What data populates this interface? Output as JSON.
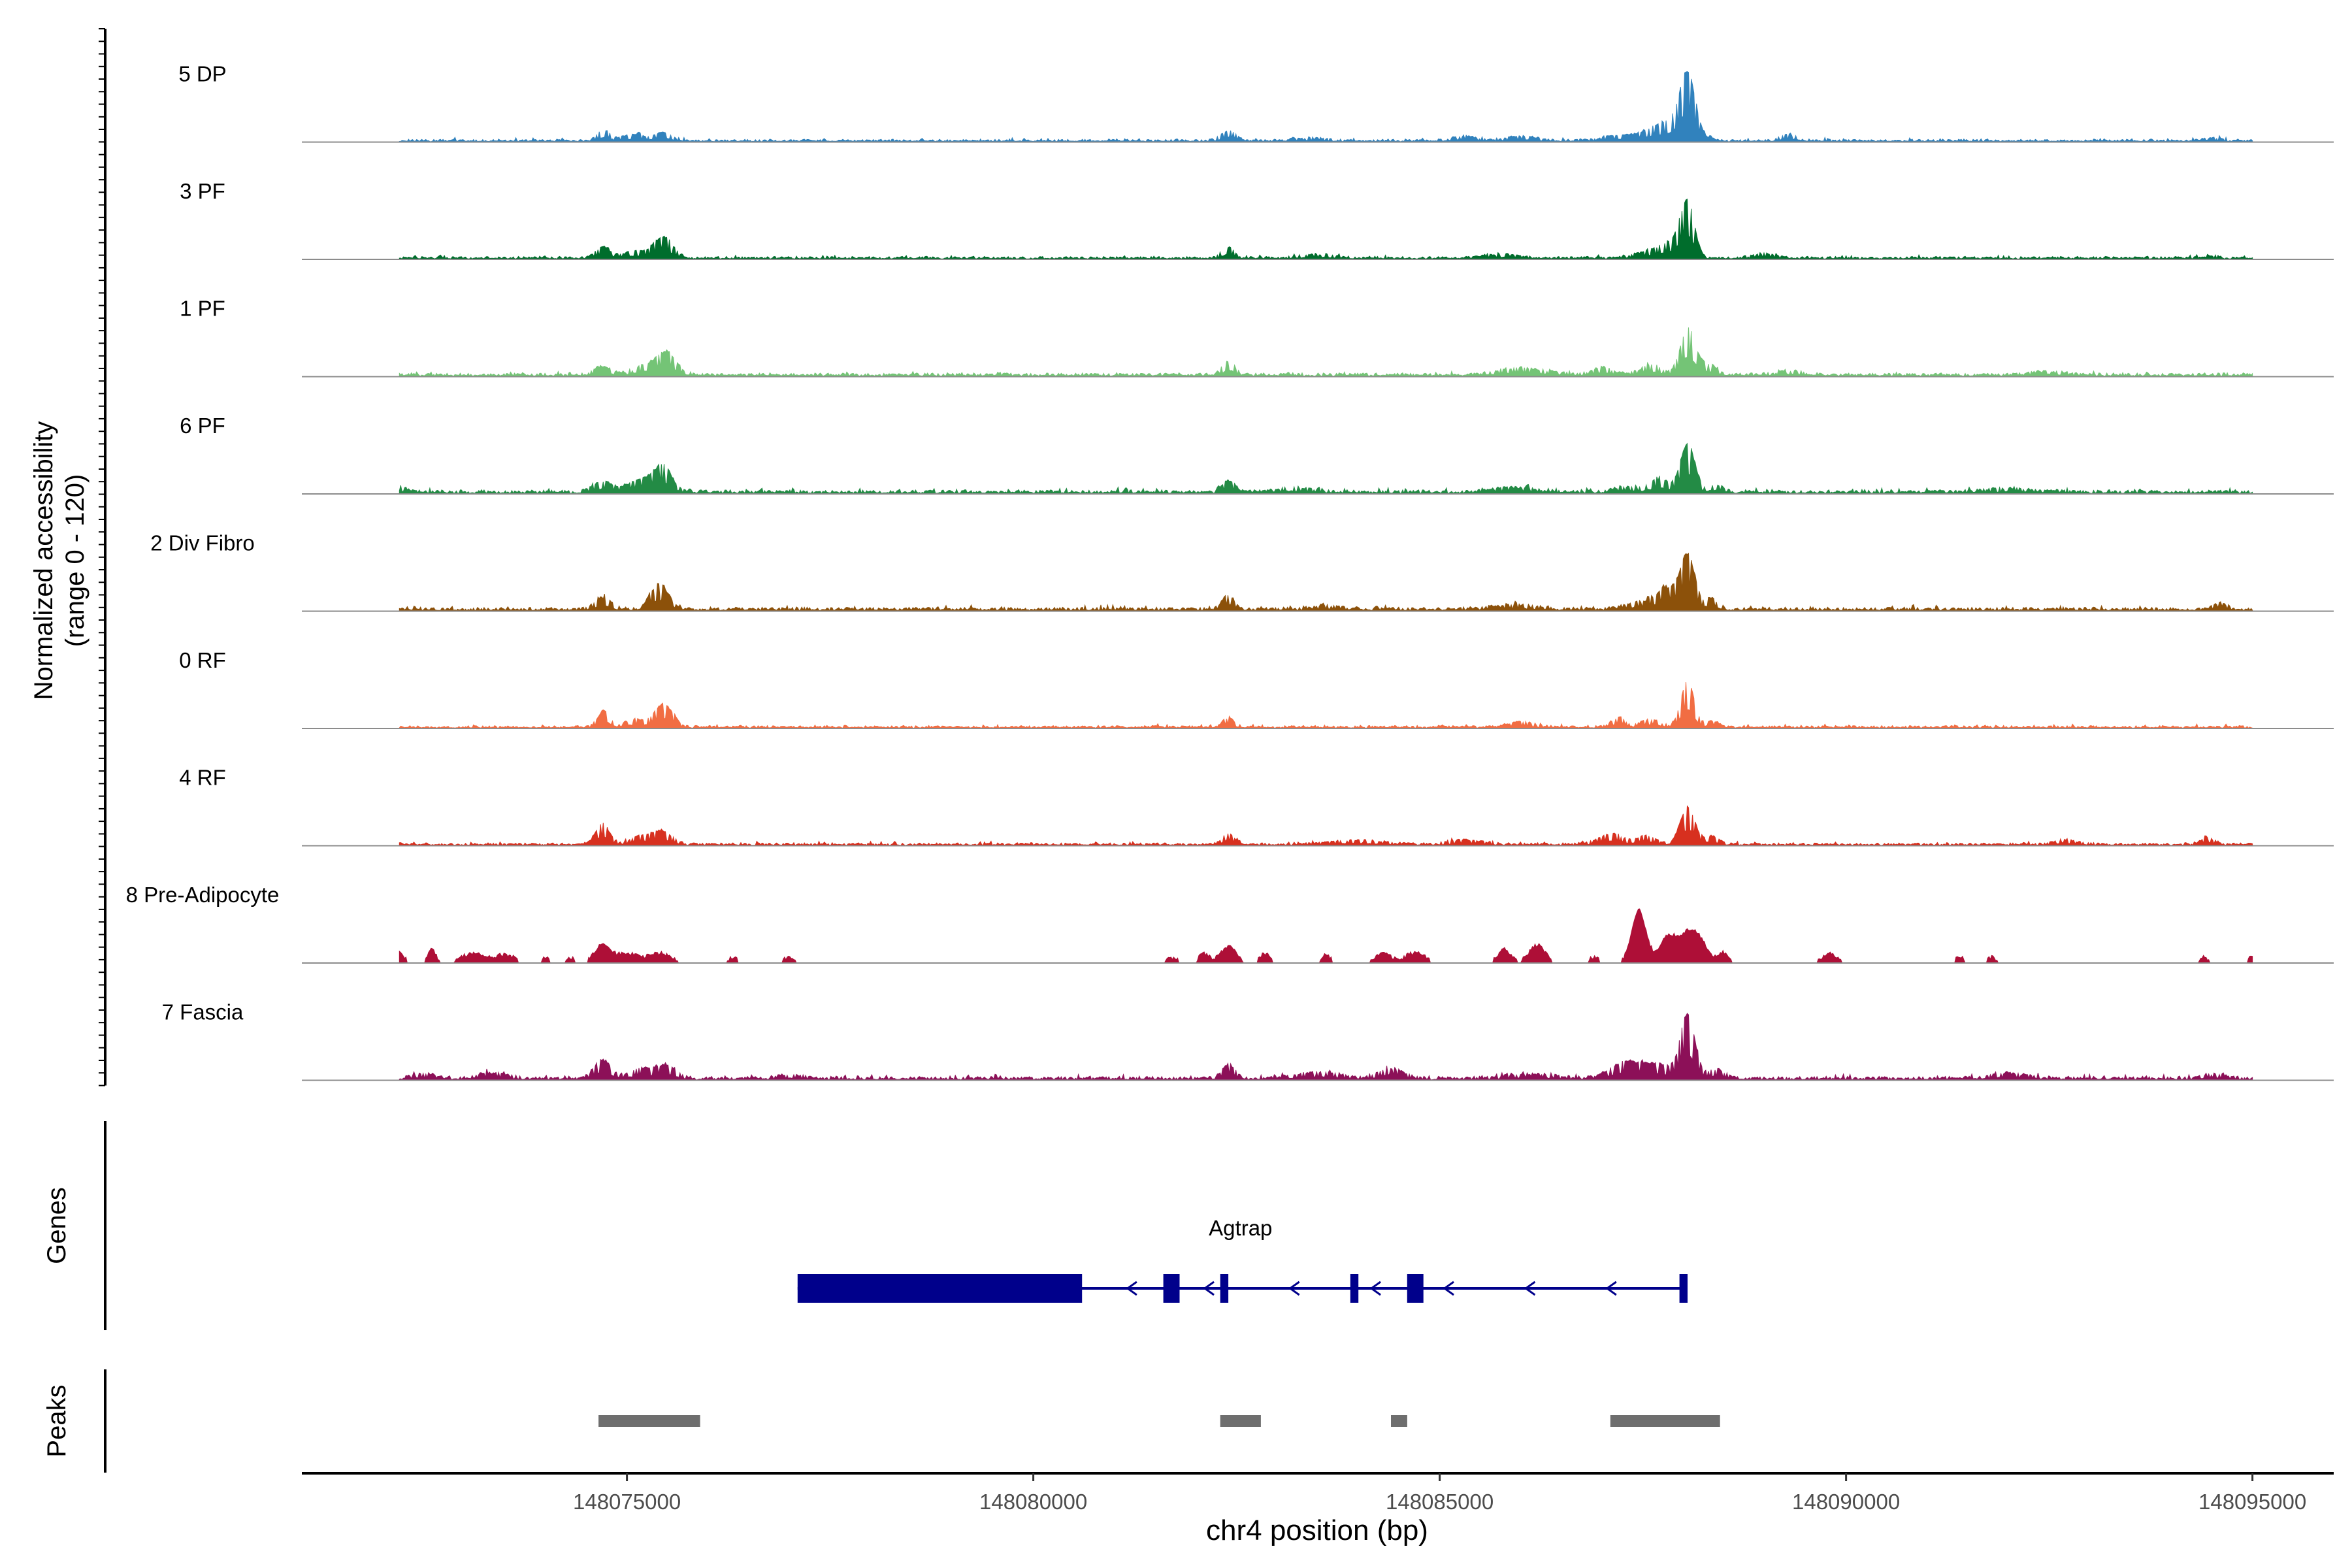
{
  "chart_data": {
    "type": "area",
    "title": "",
    "ylabel_line1": "Normalized accessibility",
    "ylabel_line2": "(range 0 - 120)",
    "y_range": [
      0,
      120
    ],
    "xlabel": "chr4 position (bp)",
    "xlim": [
      148071000,
      148096000
    ],
    "x_ticks": [
      148075000,
      148080000,
      148085000,
      148090000,
      148095000
    ],
    "x_tick_labels": [
      "148075000",
      "148080000",
      "148085000",
      "148090000",
      "148095000"
    ],
    "data_extent": [
      148072200,
      148095000
    ],
    "tracks": [
      {
        "name": "5 DP",
        "color": "#3182bd",
        "baseline": 3,
        "noise": 2,
        "peaks": [
          [
            148074720,
            12,
            70
          ],
          [
            148075100,
            7,
            150
          ],
          [
            148075450,
            10,
            90
          ],
          [
            148082400,
            12,
            90
          ],
          [
            148083400,
            3,
            200
          ],
          [
            148085300,
            5,
            150
          ],
          [
            148086000,
            5,
            200
          ],
          [
            148087200,
            6,
            200
          ],
          [
            148087600,
            8,
            150
          ],
          [
            148088050,
            68,
            90
          ],
          [
            148087900,
            22,
            200
          ],
          [
            148089300,
            7,
            110
          ],
          [
            148094500,
            3,
            100
          ]
        ]
      },
      {
        "name": "3 PF",
        "color": "#006d2c",
        "baseline": 3,
        "noise": 2,
        "peaks": [
          [
            148074700,
            12,
            90
          ],
          [
            148075100,
            8,
            150
          ],
          [
            148075450,
            25,
            110
          ],
          [
            148082400,
            13,
            70
          ],
          [
            148083500,
            4,
            200
          ],
          [
            148085800,
            4,
            200
          ],
          [
            148087600,
            7,
            220
          ],
          [
            148088050,
            58,
            80
          ],
          [
            148087900,
            18,
            160
          ],
          [
            148089000,
            5,
            150
          ],
          [
            148094400,
            5,
            70
          ]
        ]
      },
      {
        "name": "1 PF",
        "color": "#74c476",
        "baseline": 4,
        "noise": 2,
        "peaks": [
          [
            148074700,
            10,
            100
          ],
          [
            148075250,
            12,
            150
          ],
          [
            148075500,
            25,
            110
          ],
          [
            148082400,
            16,
            70
          ],
          [
            148086000,
            8,
            300
          ],
          [
            148087000,
            9,
            120
          ],
          [
            148087600,
            12,
            120
          ],
          [
            148088050,
            55,
            90
          ],
          [
            148088300,
            12,
            120
          ],
          [
            148089300,
            5,
            150
          ],
          [
            148092500,
            4,
            200
          ]
        ]
      },
      {
        "name": "6 PF",
        "color": "#238b45",
        "baseline": 4,
        "noise": 3,
        "peaks": [
          [
            148072200,
            6,
            100
          ],
          [
            148074700,
            12,
            120
          ],
          [
            148075200,
            16,
            170
          ],
          [
            148075450,
            28,
            100
          ],
          [
            148082400,
            13,
            80
          ],
          [
            148083200,
            5,
            200
          ],
          [
            148085900,
            5,
            250
          ],
          [
            148087300,
            6,
            150
          ],
          [
            148087700,
            15,
            120
          ],
          [
            148088050,
            58,
            90
          ],
          [
            148088400,
            8,
            100
          ],
          [
            148092000,
            4,
            300
          ]
        ]
      },
      {
        "name": "2 Div Fibro",
        "color": "#8c510a",
        "baseline": 4,
        "noise": 3,
        "peaks": [
          [
            148074700,
            14,
            100
          ],
          [
            148075400,
            30,
            110
          ],
          [
            148082400,
            17,
            70
          ],
          [
            148083600,
            4,
            200
          ],
          [
            148085900,
            5,
            300
          ],
          [
            148087500,
            9,
            200
          ],
          [
            148087800,
            22,
            120
          ],
          [
            148088050,
            65,
            90
          ],
          [
            148088350,
            12,
            80
          ],
          [
            148094600,
            7,
            80
          ]
        ]
      },
      {
        "name": "0 RF",
        "color": "#f16d43",
        "baseline": 3,
        "noise": 2,
        "peaks": [
          [
            148074720,
            20,
            70
          ],
          [
            148075100,
            9,
            120
          ],
          [
            148075450,
            28,
            110
          ],
          [
            148082400,
            11,
            70
          ],
          [
            148086000,
            6,
            150
          ],
          [
            148087200,
            11,
            90
          ],
          [
            148087600,
            9,
            120
          ],
          [
            148088050,
            55,
            80
          ],
          [
            148088350,
            7,
            80
          ]
        ]
      },
      {
        "name": "4 RF",
        "color": "#d7301f",
        "baseline": 3,
        "noise": 2,
        "peaks": [
          [
            148074700,
            25,
            80
          ],
          [
            148075200,
            10,
            150
          ],
          [
            148075450,
            13,
            120
          ],
          [
            148082400,
            13,
            70
          ],
          [
            148084000,
            5,
            300
          ],
          [
            148085300,
            5,
            200
          ],
          [
            148087100,
            12,
            150
          ],
          [
            148087550,
            10,
            120
          ],
          [
            148088050,
            45,
            90
          ],
          [
            148088350,
            10,
            80
          ],
          [
            148092700,
            5,
            150
          ],
          [
            148094450,
            7,
            80
          ]
        ]
      },
      {
        "name": "8 Pre-Adipocyte",
        "color": "#ae0f37",
        "baseline": 0,
        "noise": 5,
        "sparse": true,
        "peaks": [
          [
            148072200,
            12,
            60
          ],
          [
            148072600,
            18,
            50
          ],
          [
            148073100,
            12,
            150
          ],
          [
            148073500,
            10,
            120
          ],
          [
            148074000,
            7,
            50
          ],
          [
            148074300,
            7,
            50
          ],
          [
            148074700,
            22,
            100
          ],
          [
            148075000,
            12,
            120
          ],
          [
            148075400,
            12,
            150
          ],
          [
            148076300,
            7,
            60
          ],
          [
            148077000,
            7,
            80
          ],
          [
            148081700,
            7,
            80
          ],
          [
            148082100,
            12,
            60
          ],
          [
            148082400,
            20,
            100
          ],
          [
            148082850,
            12,
            60
          ],
          [
            148083600,
            10,
            60
          ],
          [
            148084300,
            12,
            100
          ],
          [
            148084700,
            13,
            120
          ],
          [
            148085800,
            17,
            80
          ],
          [
            148086200,
            22,
            100
          ],
          [
            148086900,
            7,
            60
          ],
          [
            148087450,
            65,
            90
          ],
          [
            148087800,
            28,
            100
          ],
          [
            148088100,
            42,
            150
          ],
          [
            148088500,
            12,
            60
          ],
          [
            148089800,
            12,
            100
          ],
          [
            148091400,
            7,
            60
          ],
          [
            148091800,
            7,
            60
          ],
          [
            148094400,
            7,
            60
          ],
          [
            148095000,
            7,
            60
          ]
        ]
      },
      {
        "name": "7 Fascia",
        "color": "#8c1058",
        "baseline": 4,
        "noise": 3,
        "peaks": [
          [
            148072500,
            5,
            150
          ],
          [
            148073300,
            6,
            200
          ],
          [
            148074700,
            22,
            100
          ],
          [
            148075200,
            12,
            150
          ],
          [
            148075500,
            14,
            110
          ],
          [
            148077000,
            4,
            150
          ],
          [
            148082400,
            15,
            80
          ],
          [
            148083500,
            7,
            250
          ],
          [
            148084400,
            12,
            150
          ],
          [
            148086100,
            5,
            300
          ],
          [
            148087300,
            20,
            200
          ],
          [
            148087700,
            15,
            150
          ],
          [
            148088050,
            75,
            90
          ],
          [
            148088400,
            10,
            100
          ],
          [
            148092000,
            5,
            250
          ],
          [
            148094500,
            5,
            150
          ]
        ]
      }
    ],
    "gene_track_label": "Genes",
    "gene": {
      "name": "Agtrap",
      "color": "#00008b",
      "line_span": [
        148077100,
        148088000
      ],
      "exons": [
        [
          148077100,
          148080600
        ],
        [
          148081600,
          148081800
        ],
        [
          148082300,
          148082400
        ],
        [
          148083900,
          148084000
        ],
        [
          148084600,
          148084800
        ],
        [
          148087950,
          148088050
        ]
      ],
      "arrow_positions": [
        148081200,
        148082150,
        148083200,
        148084200,
        148085100,
        148086100,
        148087100
      ]
    },
    "peaks_track_label": "Peaks",
    "peak_regions": [
      [
        148074650,
        148075900
      ],
      [
        148082300,
        148082800
      ],
      [
        148084400,
        148084600
      ],
      [
        148087100,
        148088450
      ]
    ],
    "peak_color": "#6e6e6e"
  }
}
